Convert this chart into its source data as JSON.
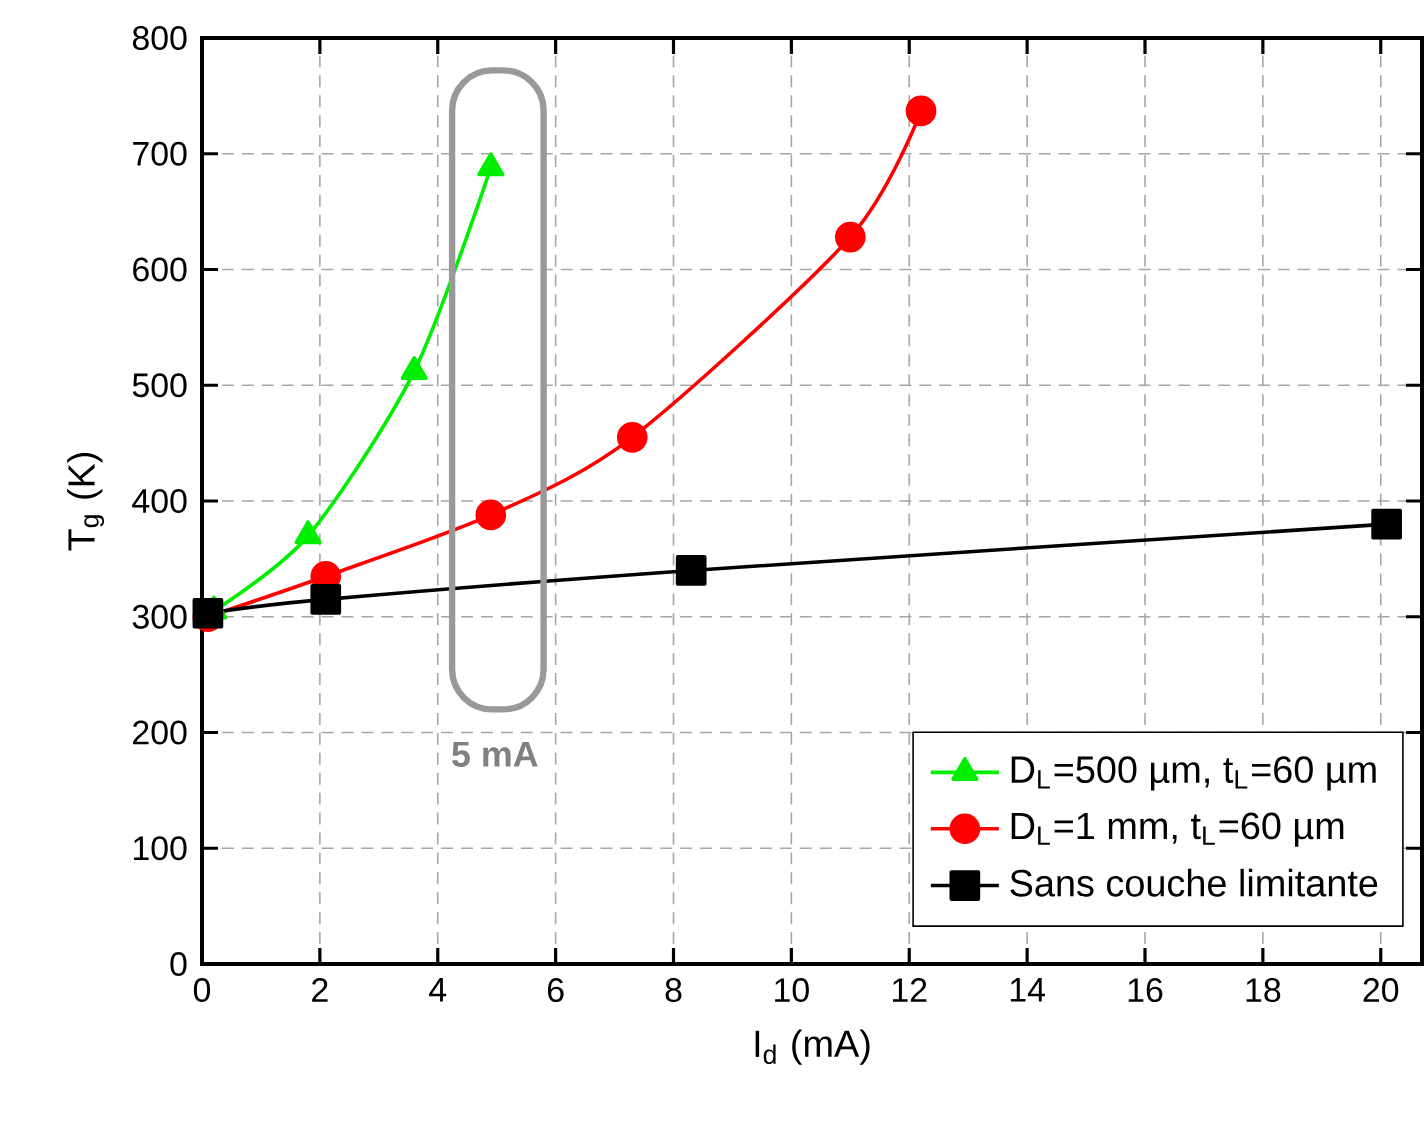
{
  "chart_data": {
    "type": "line",
    "xlabel": "I$_{d}$ (mA)",
    "ylabel": "T$_{g}$ (K)",
    "xlim": [
      0,
      20.7
    ],
    "xticks": [
      0,
      2,
      4,
      6,
      8,
      10,
      12,
      14,
      16,
      18,
      20
    ],
    "ylim": [
      0,
      800
    ],
    "yticks": [
      0,
      100,
      200,
      300,
      400,
      500,
      600,
      700,
      800
    ],
    "grid": true,
    "legend": "bottom right",
    "annotations": [
      "5 mA"
    ],
    "series": [
      {
        "name": "D$_{L}$=500 µm, t$_{L}$=60 µm",
        "color": "#00ee00",
        "marker": "triangle",
        "x": [
          0.2,
          1.8,
          3.6,
          4.9
        ],
        "values": [
          305,
          370,
          512,
          688
        ]
      },
      {
        "name": "D$_{L}$=1 mm, t$_{L}$=60 µm",
        "color": "#ff0000",
        "marker": "circle",
        "x": [
          0.1,
          2.1,
          4.9,
          7.3,
          11.0,
          12.2
        ],
        "values": [
          300,
          335,
          388,
          455,
          628,
          737
        ]
      },
      {
        "name": "Sans couche limitante",
        "color": "#000000",
        "marker": "square",
        "x": [
          0.1,
          2.1,
          8.3,
          20.1
        ],
        "values": [
          303,
          315,
          340,
          380
        ]
      }
    ]
  }
}
